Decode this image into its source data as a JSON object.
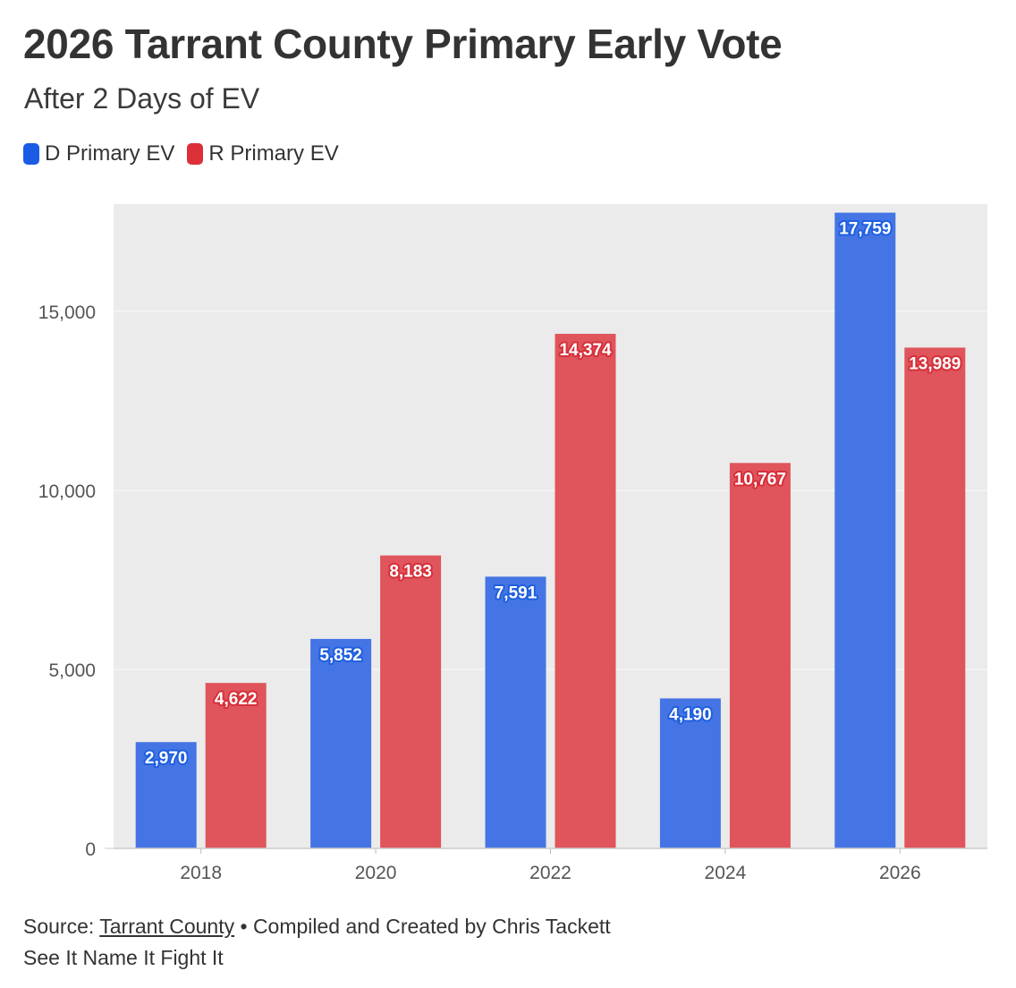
{
  "chart_data": {
    "type": "bar",
    "title": "2026 Tarrant County Primary Early Vote",
    "subtitle": "After 2 Days of EV",
    "categories": [
      "2018",
      "2020",
      "2022",
      "2024",
      "2026"
    ],
    "series": [
      {
        "name": "D Primary EV",
        "color": "#4575e4",
        "swatch_color": "#1a5ce6",
        "label_color": "#1f5fe0",
        "values": [
          2970,
          5852,
          7591,
          4190,
          17759
        ],
        "labels": [
          "2,970",
          "5,852",
          "7,591",
          "4,190",
          "17,759"
        ]
      },
      {
        "name": "R Primary EV",
        "color": "#e0545b",
        "swatch_color": "#dc2f38",
        "label_color": "#d6303a",
        "values": [
          4622,
          8183,
          14374,
          10767,
          13989
        ],
        "labels": [
          "4,622",
          "8,183",
          "14,374",
          "10,767",
          "13,989"
        ]
      }
    ],
    "xlabel": "",
    "ylabel": "",
    "ylim": [
      0,
      18000
    ],
    "yticks": [
      0,
      5000,
      10000,
      15000
    ],
    "ytick_labels": [
      "0",
      "5,000",
      "10,000",
      "15,000"
    ],
    "grid": true,
    "legend_position": "top-left",
    "plot_background": "#ebebeb"
  },
  "footer": {
    "source_prefix": "Source: ",
    "source_link": "Tarrant County",
    "source_suffix": " • Compiled and Created by Chris Tackett",
    "tagline": "See It Name It Fight It"
  }
}
